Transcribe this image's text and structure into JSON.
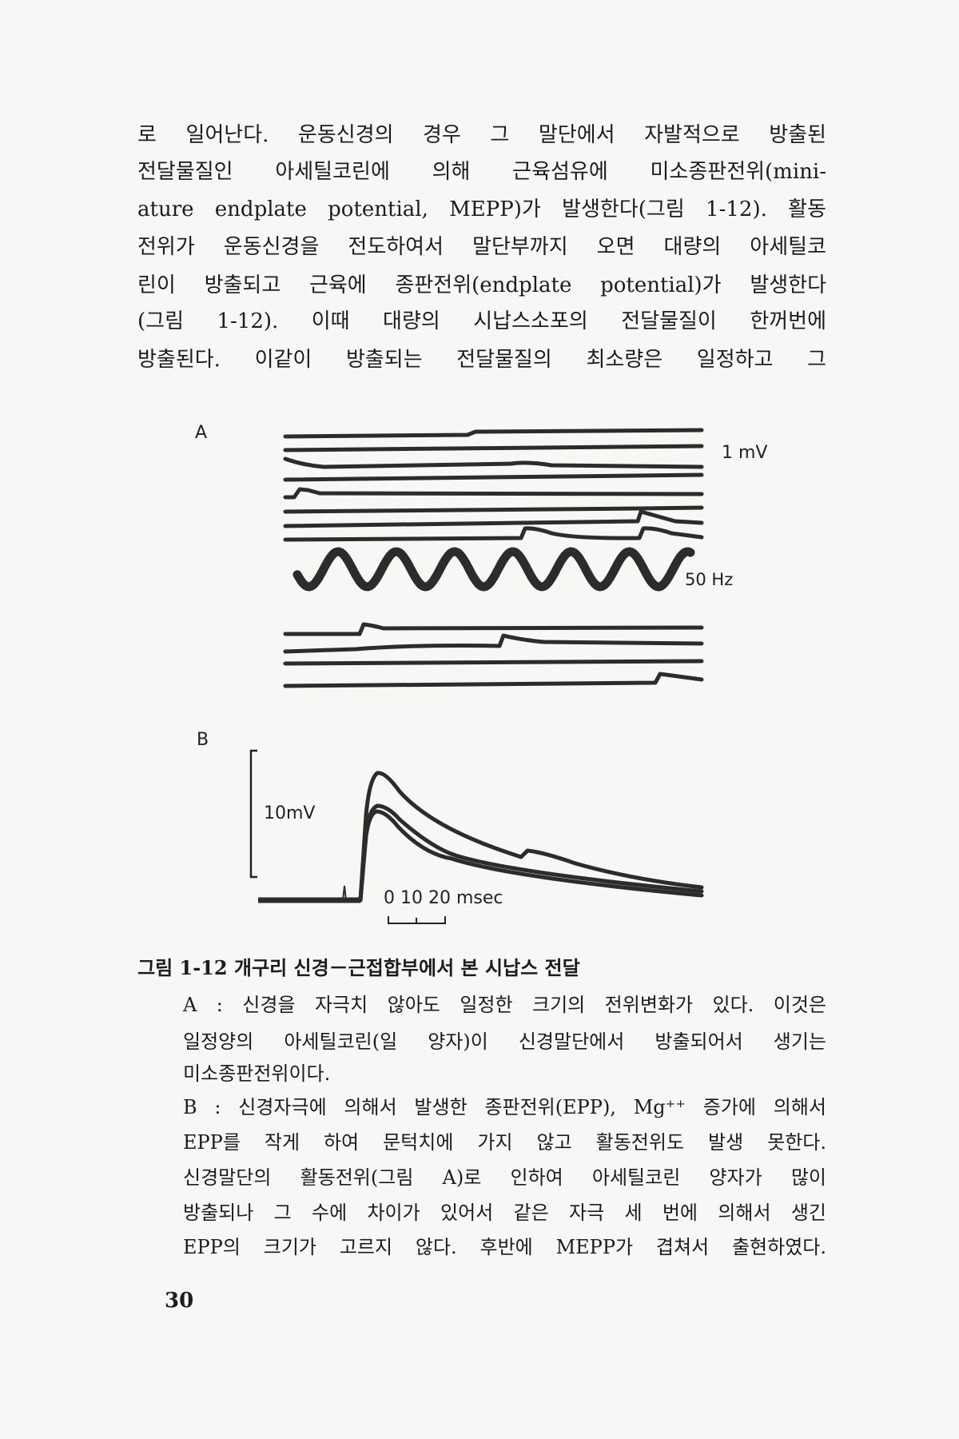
{
  "body_lines": [
    "로 일어난다. 운동신경의 경우 그 말단에서 자발적으로 방출된",
    "전달물질인 아세틸코린에 의해 근육섬유에 미소종판전위(mini-",
    "ature endplate potential, MEPP)가 발생한다(그림 1-12). 활동",
    "전위가 운동신경을 전도하여서 말단부까지 오면 대량의 아세틸코",
    "린이 방출되고 근육에 종판전위(endplate potential)가 발생한다",
    "(그림 1-12). 이때 대량의 시납스소포의 전달물질이 한꺼번에",
    "방출된다. 이같이 방출되는 전달물질의 최소량은 일정하고 그"
  ],
  "figure": {
    "panel_a": {
      "label": "A",
      "voltage_scale": "1 mV",
      "frequency_label": "50 Hz"
    },
    "panel_b": {
      "label": "B",
      "voltage_scale": "10mV",
      "time_scale": "0 10 20 msec"
    }
  },
  "caption": {
    "title": "그림 1-12   개구리 신경－근접합부에서 본 시납스 전달",
    "lines": [
      "A : 신경을 자극치 않아도 일정한 크기의 전위변화가 있다. 이것은",
      "일정양의 아세틸코린(일 양자)이 신경말단에서 방출되어서 생기는",
      "미소종판전위이다.",
      "B : 신경자극에 의해서 발생한 종판전위(EPP), Mg⁺⁺ 증가에 의해서",
      "EPP를 작게 하여 문턱치에 가지 않고 활동전위도 발생 못한다.",
      "신경말단의 활동전위(그림 A)로 인하여 아세틸코린 양자가 많이",
      "방출되나 그 수에 차이가 있어서 같은 자극 세 번에 의해서 생긴",
      "EPP의 크기가 고르지 않다. 후반에 MEPP가 겹쳐서 출현하였다."
    ]
  },
  "page_number": "30"
}
